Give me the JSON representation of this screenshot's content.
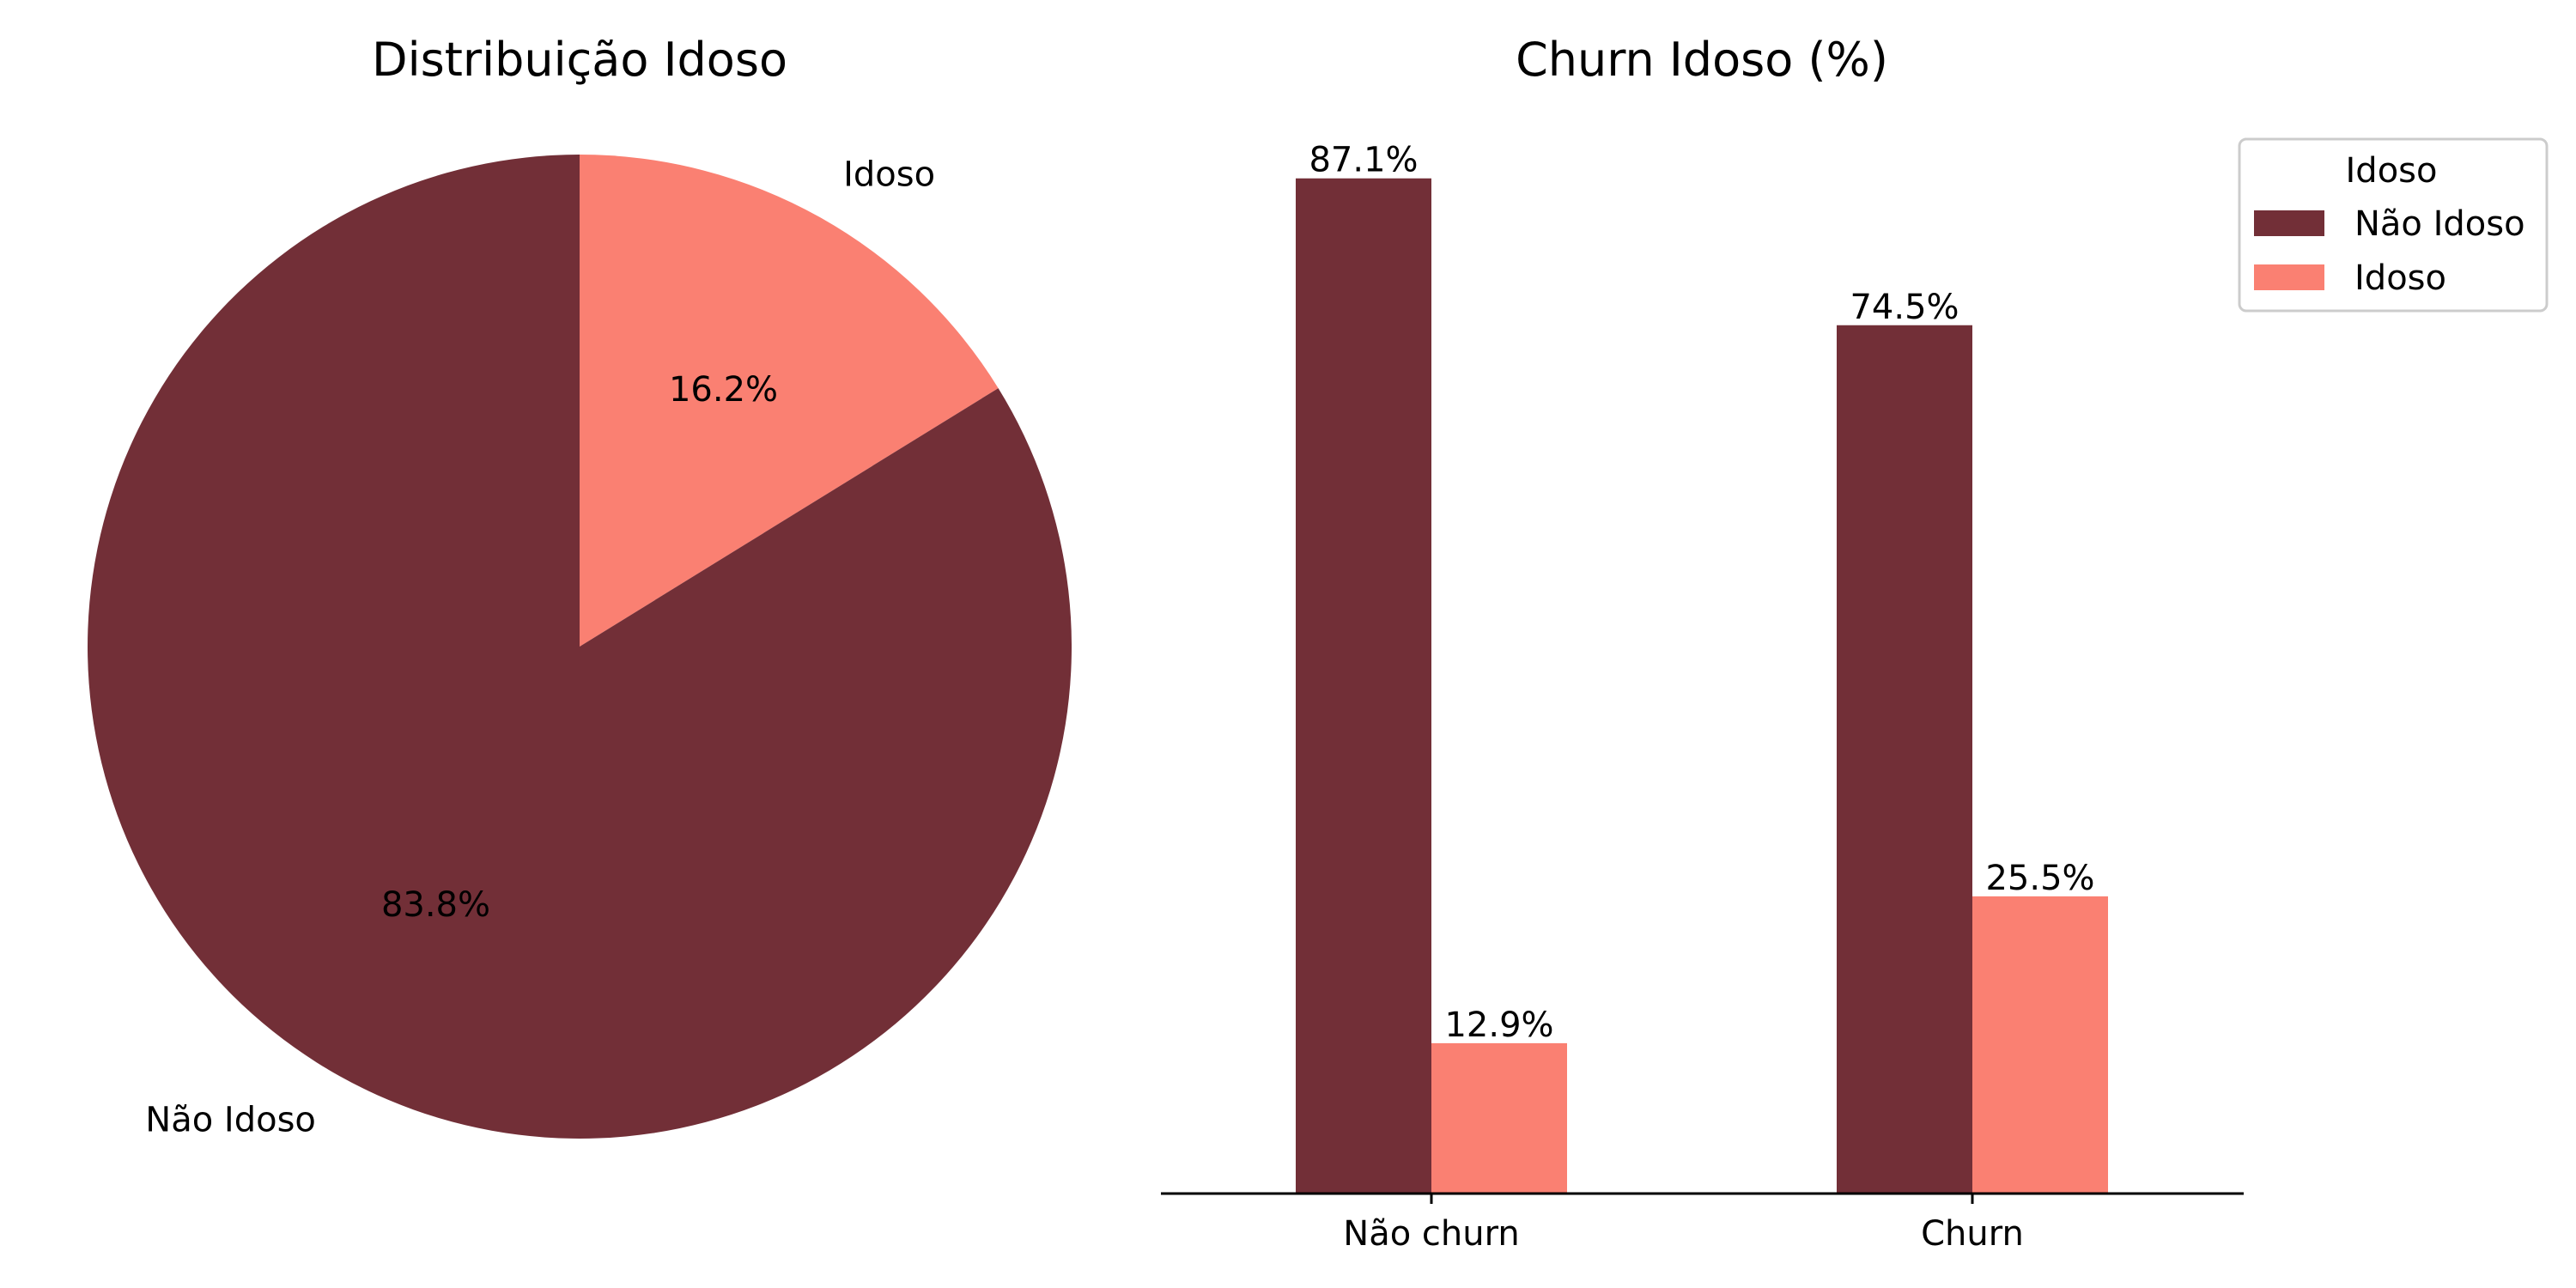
{
  "chart_data": [
    {
      "type": "pie",
      "title": "Distribuição Idoso",
      "slices": [
        {
          "label": "Não Idoso",
          "value": 83.8,
          "pct_label": "83.8%",
          "color": "#722F37"
        },
        {
          "label": "Idoso",
          "value": 16.2,
          "pct_label": "16.2%",
          "color": "#FA8072"
        }
      ]
    },
    {
      "type": "bar",
      "title": "Churn Idoso (%)",
      "categories": [
        "Não churn",
        "Churn"
      ],
      "series": [
        {
          "name": "Não Idoso",
          "values": [
            87.1,
            74.5
          ],
          "labels": [
            "87.1%",
            "74.5%"
          ],
          "color": "#722F37"
        },
        {
          "name": "Idoso",
          "values": [
            12.9,
            25.5
          ],
          "labels": [
            "12.9%",
            "25.5%"
          ],
          "color": "#FA8072"
        }
      ],
      "legend": {
        "title": "Idoso",
        "position": "top-right"
      },
      "ylim": [
        0,
        91.5
      ],
      "grid": false
    }
  ]
}
